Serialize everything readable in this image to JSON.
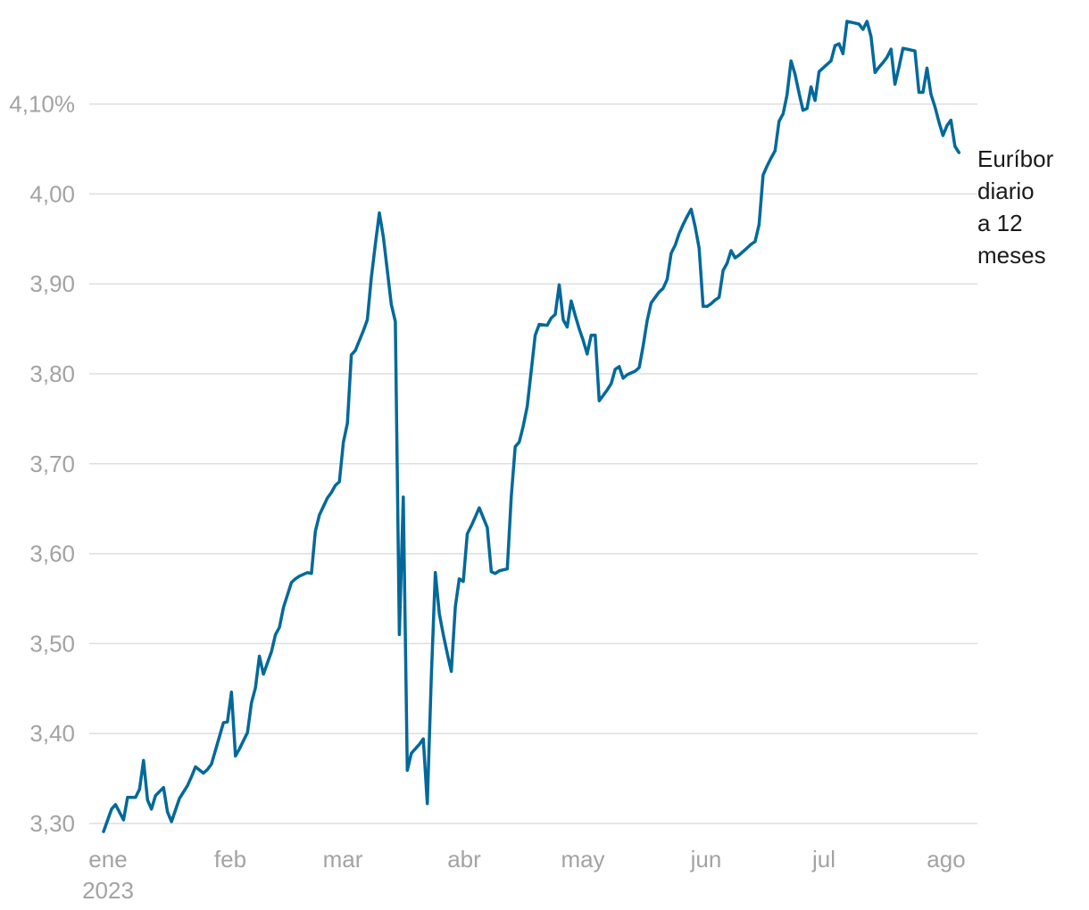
{
  "chart_data": {
    "type": "line",
    "title": "",
    "xlabel": "",
    "ylabel": "",
    "ylim": [
      3.3,
      4.2
    ],
    "y_ticks": [
      {
        "value": 3.3,
        "label": "3,30"
      },
      {
        "value": 3.4,
        "label": "3,40"
      },
      {
        "value": 3.5,
        "label": "3,50"
      },
      {
        "value": 3.6,
        "label": "3,60"
      },
      {
        "value": 3.7,
        "label": "3,70"
      },
      {
        "value": 3.8,
        "label": "3,80"
      },
      {
        "value": 3.9,
        "label": "3,90"
      },
      {
        "value": 4.0,
        "label": "4,00"
      },
      {
        "value": 4.1,
        "label": "4,10%"
      }
    ],
    "x_ticks": [
      {
        "label": "ene",
        "sublabel": "2023"
      },
      {
        "label": "feb"
      },
      {
        "label": "mar"
      },
      {
        "label": "abr"
      },
      {
        "label": "may"
      },
      {
        "label": "jun"
      },
      {
        "label": "jul"
      },
      {
        "label": "ago"
      }
    ],
    "series": [
      {
        "name": "Euríbor diario a 12 meses",
        "label_lines": [
          "Euríbor",
          "diario",
          "a 12",
          "meses"
        ],
        "color": "#00699a",
        "x": [
          0,
          2,
          3,
          5,
          6,
          7,
          8,
          9,
          10,
          11,
          12,
          13,
          15,
          16,
          17,
          19,
          20,
          21,
          22,
          23,
          25,
          26,
          27,
          30,
          31,
          32,
          33,
          34,
          35,
          36,
          37,
          38,
          39,
          40,
          42,
          43,
          44,
          45,
          47,
          48,
          49,
          50,
          51,
          52,
          53,
          54,
          56,
          57,
          58,
          59,
          60,
          61,
          62,
          63,
          64,
          65,
          66,
          67,
          68,
          69,
          70,
          71,
          72,
          73,
          74,
          75,
          76,
          77,
          78,
          79,
          80,
          81,
          82,
          83,
          84,
          85,
          86,
          87,
          88,
          89,
          90,
          91,
          92,
          93,
          94,
          95,
          96,
          97,
          98,
          99,
          100,
          101,
          102,
          103,
          104,
          105,
          106,
          107,
          108,
          109,
          111,
          112,
          113,
          114,
          115,
          116,
          117,
          118,
          119,
          120,
          121,
          122,
          123,
          124,
          125,
          126,
          127,
          128,
          129,
          130,
          131,
          132,
          133,
          134,
          135,
          136,
          137,
          138,
          139,
          140,
          141,
          142,
          143,
          144,
          145,
          146,
          147,
          148,
          149,
          150,
          151,
          152,
          153,
          154,
          155,
          156,
          157,
          158,
          159,
          160,
          161,
          162,
          163,
          164,
          165,
          166,
          167,
          168,
          169,
          170,
          171,
          172,
          173,
          174,
          175,
          176,
          177,
          178,
          179,
          180,
          181,
          182,
          183,
          184,
          185,
          186,
          187,
          188,
          189,
          190,
          191,
          192,
          193,
          194,
          195,
          196,
          197,
          198,
          199,
          200,
          201,
          202,
          203,
          204,
          205,
          206,
          207,
          208,
          209,
          210,
          211,
          212,
          213,
          214
        ],
        "values": [
          3.291,
          3.316,
          3.321,
          3.304,
          3.329,
          3.329,
          3.329,
          3.338,
          3.37,
          3.326,
          3.316,
          3.331,
          3.34,
          3.313,
          3.302,
          3.328,
          3.335,
          3.342,
          3.352,
          3.363,
          3.356,
          3.36,
          3.366,
          3.412,
          3.413,
          3.446,
          3.375,
          3.383,
          3.392,
          3.401,
          3.434,
          3.451,
          3.486,
          3.466,
          3.491,
          3.51,
          3.518,
          3.54,
          3.568,
          3.572,
          3.575,
          3.577,
          3.579,
          3.578,
          3.625,
          3.643,
          3.662,
          3.668,
          3.676,
          3.68,
          3.724,
          3.745,
          3.821,
          3.826,
          3.837,
          3.848,
          3.86,
          3.907,
          3.944,
          3.979,
          3.952,
          3.915,
          3.877,
          3.858,
          3.51,
          3.663,
          3.359,
          3.378,
          3.383,
          3.388,
          3.394,
          3.322,
          3.463,
          3.579,
          3.533,
          3.51,
          3.489,
          3.469,
          3.541,
          3.572,
          3.569,
          3.622,
          3.631,
          3.641,
          3.651,
          3.64,
          3.629,
          3.58,
          3.578,
          3.581,
          3.582,
          3.583,
          3.664,
          3.719,
          3.724,
          3.742,
          3.764,
          3.803,
          3.843,
          3.855,
          3.854,
          3.862,
          3.866,
          3.899,
          3.86,
          3.852,
          3.881,
          3.865,
          3.85,
          3.837,
          3.822,
          3.843,
          3.843,
          3.77,
          3.776,
          3.782,
          3.789,
          3.805,
          3.808,
          3.795,
          3.799,
          3.801,
          3.803,
          3.807,
          3.831,
          3.859,
          3.879,
          3.885,
          3.891,
          3.895,
          3.905,
          3.934,
          3.943,
          3.956,
          3.966,
          3.975,
          3.983,
          3.964,
          3.94,
          3.875,
          3.875,
          3.878,
          3.882,
          3.885,
          3.915,
          3.923,
          3.937,
          3.929,
          3.932,
          3.936,
          3.94,
          3.944,
          3.947,
          3.966,
          4.021,
          4.031,
          4.04,
          4.048,
          4.081,
          4.089,
          4.11,
          4.148,
          4.133,
          4.112,
          4.093,
          4.095,
          4.119,
          4.104,
          4.136,
          4.14,
          4.144,
          4.148,
          4.165,
          4.167,
          4.156,
          4.192,
          4.191,
          4.19,
          4.189,
          4.183,
          4.192,
          4.175,
          4.135,
          4.141,
          4.146,
          4.152,
          4.161,
          4.122,
          4.141,
          4.162,
          4.161,
          4.16,
          4.159,
          4.113,
          4.113,
          4.14,
          4.111,
          4.097,
          4.08,
          4.065,
          4.076,
          4.082,
          4.053,
          4.046
        ]
      }
    ]
  }
}
